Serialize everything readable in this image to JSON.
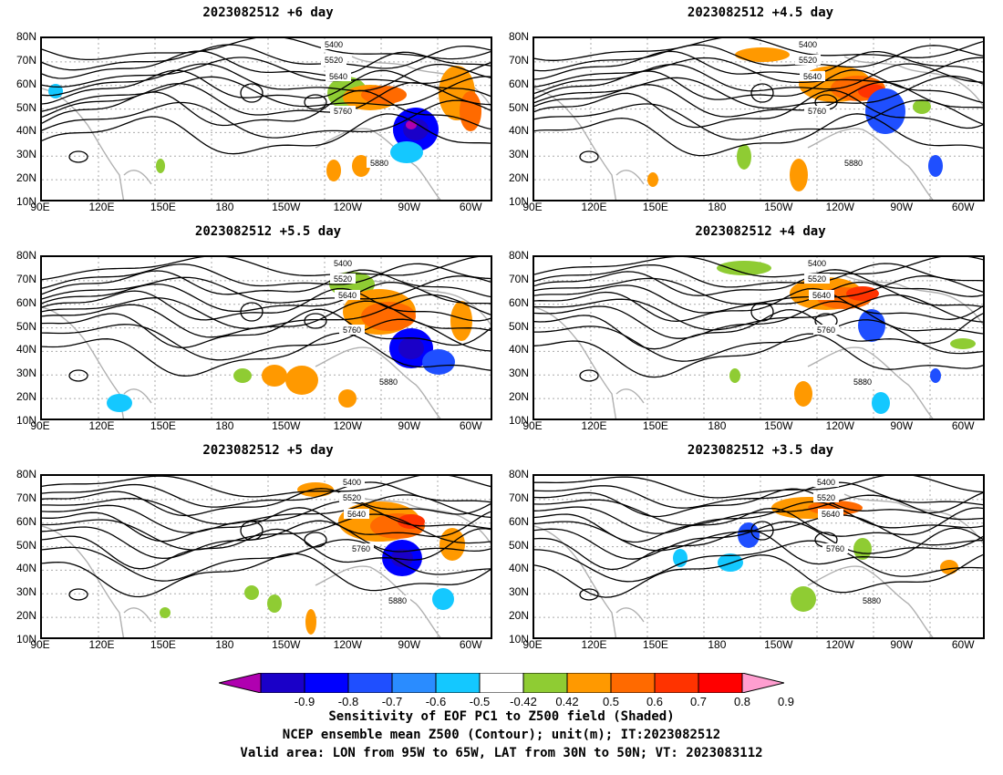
{
  "panels": [
    {
      "title": "2023082512 +6 day"
    },
    {
      "title": "2023082512 +4.5 day"
    },
    {
      "title": "2023082512 +5.5 day"
    },
    {
      "title": "2023082512 +4 day"
    },
    {
      "title": "2023082512 +5 day"
    },
    {
      "title": "2023082512 +3.5 day"
    }
  ],
  "axes": {
    "lat_ticks": [
      "80N",
      "70N",
      "60N",
      "50N",
      "40N",
      "30N",
      "20N",
      "10N"
    ],
    "lon_ticks": [
      "90E",
      "120E",
      "150E",
      "180",
      "150W",
      "120W",
      "90W",
      "60W"
    ]
  },
  "contour_labels": [
    "5400",
    "5520",
    "5640",
    "5760",
    "5880"
  ],
  "colorbar": {
    "ticks": [
      "-0.9",
      "-0.8",
      "-0.7",
      "-0.6",
      "-0.5",
      "-0.42",
      "0.42",
      "0.5",
      "0.6",
      "0.7",
      "0.8",
      "0.9"
    ],
    "colors": [
      "#b000b0",
      "#1a00c8",
      "#0000ff",
      "#1f4fff",
      "#2a8cff",
      "#14c8ff",
      "#ffffff",
      "#8fcc33",
      "#ff9900",
      "#ff6a00",
      "#ff3300",
      "#ff0000",
      "#ff9ed0"
    ]
  },
  "captions": {
    "line1": "Sensitivity of EOF PC1 to Z500 field (Shaded)",
    "line2": "NCEP ensemble mean Z500 (Contour); unit(m); IT:2023082512",
    "line3": "Valid area: LON from 95W to 65W, LAT from 30N to 50N; VT: 2023083112"
  }
}
